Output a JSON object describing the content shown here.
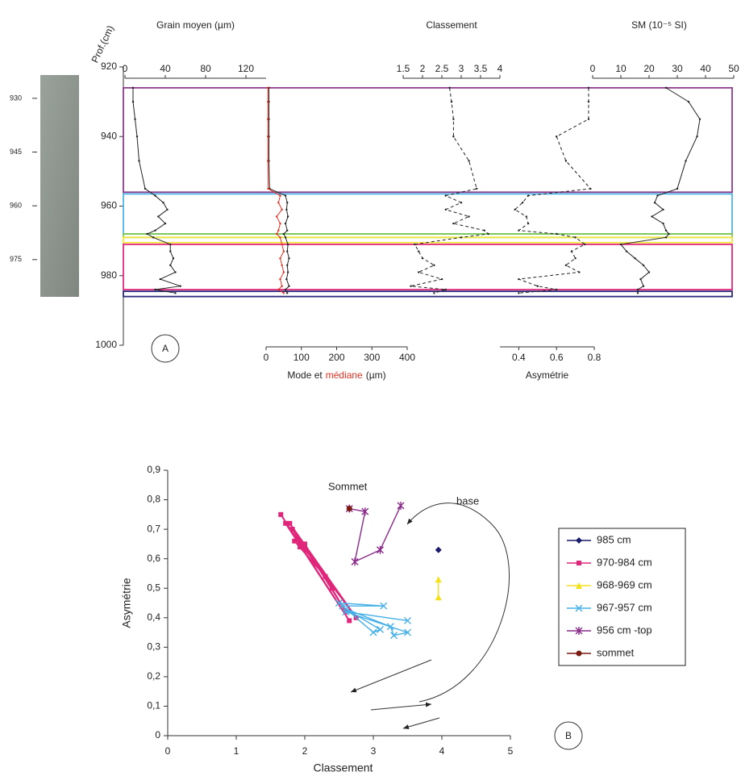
{
  "chart_data": [
    {
      "type": "depth_profile",
      "panel_label": "A",
      "ylabel": "Prof.(cm)",
      "ylim": [
        920,
        1000
      ],
      "yticks": [
        920,
        940,
        960,
        980,
        1000
      ],
      "core_ylim": [
        923.5,
        985.4
      ],
      "core_ticks": [
        930,
        945,
        960,
        975
      ],
      "depth": [
        926,
        930,
        935,
        940,
        947,
        955,
        957,
        959,
        961,
        963,
        965,
        967,
        968,
        969,
        971,
        973,
        975,
        977,
        979,
        981,
        983,
        984,
        985
      ],
      "zones": [
        {
          "from": 926,
          "to": 956,
          "color": "#8e3a8e"
        },
        {
          "from": 956.5,
          "to": 968,
          "color": "#4fb6e8"
        },
        {
          "from": 968,
          "to": 969,
          "color": "#7ec850"
        },
        {
          "from": 969,
          "to": 970.5,
          "color": "#f2e640"
        },
        {
          "from": 971,
          "to": 984,
          "color": "#e4287c"
        },
        {
          "from": 984.5,
          "to": 986,
          "color": "#2a2a7a"
        }
      ],
      "tracks": [
        {
          "title": "Grain moyen (µm)",
          "axis": "top",
          "xlim": [
            0,
            140
          ],
          "xticks": [
            0,
            40,
            80,
            120
          ],
          "series": [
            {
              "color": "#222222",
              "dashed": false,
              "values": [
                8,
                8,
                10,
                12,
                14,
                20,
                30,
                38,
                42,
                33,
                40,
                30,
                22,
                28,
                45,
                45,
                48,
                45,
                50,
                35,
                55,
                30,
                50
              ]
            }
          ]
        },
        {
          "title": [
            "Mode et",
            "médiane",
            "(µm)"
          ],
          "axis": "bottom",
          "xlim": [
            0,
            400
          ],
          "xticks": [
            0,
            100,
            200,
            300,
            400
          ],
          "series": [
            {
              "color": "#222222",
              "dashed": false,
              "values": [
                8,
                8,
                8,
                8,
                8,
                10,
                55,
                60,
                58,
                62,
                55,
                60,
                50,
                55,
                62,
                60,
                65,
                60,
                62,
                58,
                65,
                55,
                60
              ]
            },
            {
              "color": "#e03020",
              "dashed": false,
              "values": [
                5,
                5,
                5,
                5,
                5,
                6,
                40,
                35,
                45,
                30,
                40,
                35,
                30,
                40,
                45,
                50,
                40,
                45,
                50,
                40,
                45,
                35,
                50
              ]
            }
          ]
        },
        {
          "title": "Classement",
          "axis": "top",
          "xlim": [
            1.5,
            4
          ],
          "xticks": [
            1.5,
            2,
            2.5,
            3,
            3.5,
            4
          ],
          "series": [
            {
              "color": "#222222",
              "dashed": true,
              "values": [
                2.7,
                2.75,
                2.8,
                2.8,
                3.2,
                3.4,
                2.6,
                3.0,
                2.6,
                3.2,
                2.8,
                3.6,
                3.7,
                3.0,
                1.8,
                1.9,
                2.0,
                2.3,
                1.9,
                2.5,
                1.7,
                2.6,
                2.3
              ]
            }
          ]
        },
        {
          "title": "Asymétrie",
          "axis": "bottom",
          "xlim": [
            0.3,
            0.8
          ],
          "xticks": [
            0.4,
            0.6,
            0.8
          ],
          "series": [
            {
              "color": "#222222",
              "dashed": true,
              "values": [
                0.77,
                0.77,
                0.77,
                0.6,
                0.65,
                0.78,
                0.45,
                0.42,
                0.38,
                0.44,
                0.45,
                0.4,
                0.6,
                0.7,
                0.75,
                0.68,
                0.7,
                0.65,
                0.72,
                0.4,
                0.5,
                0.6,
                0.4
              ]
            }
          ]
        },
        {
          "title": "SM (10⁻⁵ SI)",
          "axis": "top",
          "xlim": [
            0,
            50
          ],
          "xticks": [
            0,
            10,
            20,
            30,
            40,
            50
          ],
          "series": [
            {
              "color": "#222222",
              "dashed": false,
              "values": [
                26,
                34,
                38,
                37,
                33,
                30,
                23,
                22,
                25,
                21,
                25,
                26,
                27,
                26,
                10,
                12,
                15,
                18,
                20,
                17,
                18,
                16,
                16
              ]
            }
          ]
        }
      ]
    },
    {
      "type": "scatter",
      "panel_label": "B",
      "xlabel": "Classement",
      "ylabel": "Asymétrie",
      "xlim": [
        0,
        5
      ],
      "xticks": [
        0,
        1,
        2,
        3,
        4,
        5
      ],
      "ylim": [
        0,
        0.9
      ],
      "yticks": [
        0,
        {
          "value": 0.1,
          "label": "0,1"
        },
        {
          "value": 0.2,
          "label": "0,2"
        },
        {
          "value": 0.3,
          "label": "0,3"
        },
        {
          "value": 0.4,
          "label": "0,4"
        },
        {
          "value": 0.5,
          "label": "0,5"
        },
        {
          "value": 0.6,
          "label": "0,6"
        },
        {
          "value": 0.7,
          "label": "0,7"
        },
        {
          "value": 0.8,
          "label": "0,8"
        },
        {
          "value": 0.9,
          "label": "0,9"
        }
      ],
      "annotations": [
        "Sommet",
        "base"
      ],
      "series": [
        {
          "name": "985 cm",
          "color": "#1a1a6e",
          "marker": "diamond",
          "x": [
            3.95
          ],
          "values": [
            0.63
          ]
        },
        {
          "name": "970-984 cm",
          "color": "#e0267a",
          "marker": "square",
          "x": [
            1.65,
            2.65,
            1.72,
            2.75,
            1.78,
            2.4,
            1.82,
            2.3,
            1.85,
            1.93,
            2.0,
            2.6,
            1.98
          ],
          "values": [
            0.75,
            0.39,
            0.72,
            0.4,
            0.72,
            0.5,
            0.7,
            0.54,
            0.66,
            0.64,
            0.65,
            0.42,
            0.65
          ]
        },
        {
          "name": "968-969 cm",
          "color": "#f5e11a",
          "marker": "triangle",
          "x": [
            3.95,
            3.95
          ],
          "values": [
            0.53,
            0.47
          ]
        },
        {
          "name": "967-957 cm",
          "color": "#45b0e8",
          "marker": "x",
          "x": [
            2.5,
            3.15,
            2.55,
            3.0,
            3.1,
            2.6,
            3.25,
            3.3,
            3.5,
            2.6,
            3.5
          ],
          "values": [
            0.45,
            0.44,
            0.44,
            0.35,
            0.36,
            0.43,
            0.37,
            0.34,
            0.35,
            0.42,
            0.39
          ]
        },
        {
          "name": "956 cm -top",
          "color": "#8a2a8a",
          "marker": "star",
          "x": [
            2.65,
            2.88,
            2.73,
            3.1,
            3.4
          ],
          "values": [
            0.77,
            0.76,
            0.59,
            0.63,
            0.78
          ]
        },
        {
          "name": "sommet",
          "color": "#7a1a10",
          "marker": "circle",
          "x": [
            2.65
          ],
          "values": [
            0.77
          ]
        }
      ]
    }
  ]
}
